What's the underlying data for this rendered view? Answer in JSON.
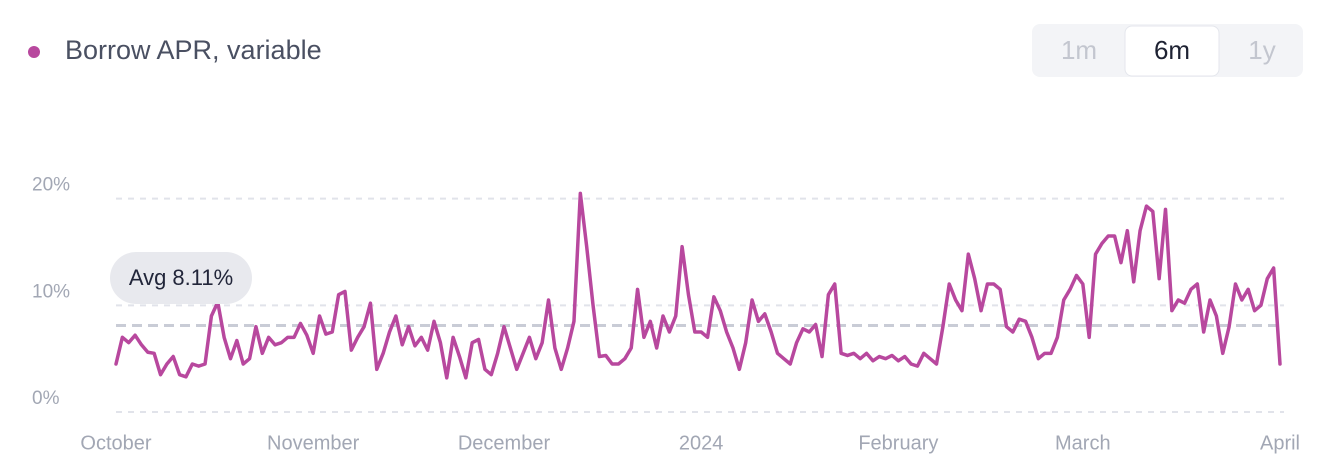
{
  "chart_data": {
    "type": "line",
    "categories": [
      "October",
      null,
      null,
      null,
      null,
      null,
      null,
      null,
      null,
      null,
      null,
      null,
      null,
      null,
      null,
      null,
      null,
      null,
      null,
      null,
      null,
      null,
      null,
      null,
      null,
      null,
      null,
      null,
      null,
      null,
      null,
      "November",
      null,
      null,
      null,
      null,
      null,
      null,
      null,
      null,
      null,
      null,
      null,
      null,
      null,
      null,
      null,
      null,
      null,
      null,
      null,
      null,
      null,
      null,
      null,
      null,
      null,
      null,
      null,
      null,
      null,
      "December",
      null,
      null,
      null,
      null,
      null,
      null,
      null,
      null,
      null,
      null,
      null,
      null,
      null,
      null,
      null,
      null,
      null,
      null,
      null,
      null,
      null,
      null,
      null,
      null,
      null,
      null,
      null,
      null,
      null,
      null,
      "2024",
      null,
      null,
      null,
      null,
      null,
      null,
      null,
      null,
      null,
      null,
      null,
      null,
      null,
      null,
      null,
      null,
      null,
      null,
      null,
      null,
      null,
      null,
      null,
      null,
      null,
      null,
      null,
      null,
      null,
      null,
      "February",
      null,
      null,
      null,
      null,
      null,
      null,
      null,
      null,
      null,
      null,
      null,
      null,
      null,
      null,
      null,
      null,
      null,
      null,
      null,
      null,
      null,
      null,
      null,
      null,
      null,
      null,
      null,
      null,
      "March",
      null,
      null,
      null,
      null,
      null,
      null,
      null,
      null,
      null,
      null,
      null,
      null,
      null,
      null,
      null,
      null,
      null,
      null,
      null,
      null,
      null,
      null,
      null,
      null,
      null,
      null,
      null,
      null,
      null,
      null,
      "April"
    ],
    "series": [
      {
        "name": "Borrow APR, variable",
        "color": "#b8489e",
        "values": [
          4.5,
          7,
          6.5,
          7.2,
          6.3,
          5.6,
          5.5,
          3.5,
          4.5,
          5.2,
          3.5,
          3.3,
          4.5,
          4.3,
          4.5,
          9,
          10.3,
          7,
          5,
          6.7,
          4.5,
          5,
          8,
          5.5,
          7,
          6.3,
          6.5,
          7,
          7,
          8.3,
          7.2,
          5.5,
          9,
          7.3,
          7.5,
          11,
          11.3,
          5.8,
          7,
          8,
          10.2,
          4,
          5.5,
          7.5,
          9,
          6.3,
          8,
          6.2,
          7,
          5.8,
          8.5,
          6.5,
          3.2,
          7,
          5.2,
          3.2,
          6.5,
          6.8,
          4,
          3.5,
          5.5,
          8,
          6,
          4,
          5.5,
          7,
          5,
          6.5,
          10.5,
          6,
          4,
          6,
          8.5,
          20.5,
          15.5,
          10,
          5.2,
          5.3,
          4.5,
          4.5,
          5,
          6,
          11.5,
          7,
          8.5,
          6,
          9,
          7.5,
          9,
          15.5,
          11,
          7.5,
          7.5,
          7,
          10.8,
          9.5,
          7.5,
          6,
          4,
          6.5,
          10.5,
          8.5,
          9.2,
          7.5,
          5.5,
          5,
          4.5,
          6.5,
          7.8,
          7.5,
          8.2,
          5.2,
          11,
          12,
          5.5,
          5.3,
          5.5,
          5,
          5.5,
          4.8,
          5.2,
          5,
          5.3,
          4.8,
          5.2,
          4.5,
          4.3,
          5.5,
          5,
          4.5,
          8,
          12,
          10.5,
          9.5,
          14.8,
          12.5,
          9.5,
          12,
          12,
          11.5,
          8,
          7.5,
          8.7,
          8.5,
          7,
          5,
          5.5,
          5.5,
          7,
          10.5,
          11.5,
          12.8,
          12,
          7,
          14.8,
          15.8,
          16.5,
          16.5,
          14,
          17,
          12.2,
          17,
          19.3,
          18.8,
          12.5,
          19,
          9.5,
          10.5,
          10.2,
          11.5,
          12,
          7.5,
          10.5,
          9,
          5.5,
          8,
          12,
          10.5,
          11.5,
          9.5,
          10,
          12.5,
          13.5,
          4.5
        ]
      }
    ],
    "ylim": [
      0,
      21
    ],
    "yticks": [
      {
        "value": 0,
        "label": "0%"
      },
      {
        "value": 10,
        "label": "10%"
      },
      {
        "value": 20,
        "label": "20%"
      }
    ],
    "grid": true,
    "average": {
      "value": 8.11,
      "label": "Avg 8.11%"
    },
    "ranges": [
      "1m",
      "6m",
      "1y"
    ],
    "selected_range": 1
  }
}
